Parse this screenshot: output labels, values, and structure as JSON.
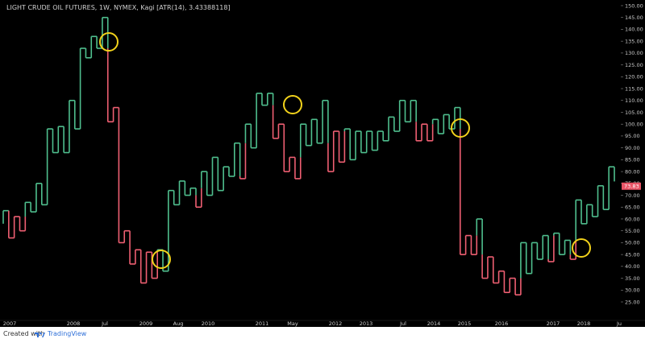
{
  "chart_data": {
    "type": "line",
    "chart_style": "kagi",
    "title": "LIGHT CRUDE OIL FUTURES, 1W, NYMEX, Kagi [ATR(14), 3.43388118]",
    "y_ticks": [
      25,
      30,
      35,
      40,
      45,
      50,
      55,
      60,
      65,
      70,
      75,
      80,
      85,
      90,
      95,
      100,
      105,
      110,
      115,
      120,
      125,
      130,
      135,
      140,
      145,
      150
    ],
    "y_tick_labels": [
      "25.00",
      "30.00",
      "35.00",
      "40.00",
      "45.00",
      "50.00",
      "55.00",
      "60.00",
      "65.00",
      "70.00",
      "75.00",
      "80.00",
      "85.00",
      "90.00",
      "95.00",
      "100.00",
      "105.00",
      "110.00",
      "115.00",
      "120.00",
      "125.00",
      "130.00",
      "135.00",
      "140.00",
      "145.00",
      "150.00"
    ],
    "ylim": [
      25,
      150
    ],
    "x_tick_labels": [
      "2007",
      "2008",
      "Jul",
      "2009",
      "Aug",
      "2010",
      "2011",
      "May",
      "2012",
      "2013",
      "Jul",
      "2014",
      "2015",
      "2016",
      "2017",
      "2018",
      "Ju"
    ],
    "last_price_label": "73.83",
    "up_color": "#4fbf8e",
    "down_color": "#ef5f72",
    "kagi_levels": [
      58,
      63.5,
      52,
      61,
      55,
      67,
      63,
      75,
      66,
      98,
      88,
      99,
      88,
      110,
      98,
      132,
      128,
      137,
      132,
      145,
      101,
      107,
      50,
      55,
      41,
      47,
      33,
      46,
      35,
      47,
      38,
      72,
      66,
      76,
      70,
      73,
      65,
      80,
      70,
      86,
      72,
      82,
      78,
      92,
      77,
      100,
      90,
      113,
      108,
      113,
      94,
      100,
      80,
      86,
      77,
      100,
      91,
      102,
      92,
      110,
      80,
      97,
      84,
      98,
      85,
      97,
      88,
      97,
      89,
      97,
      93,
      103,
      97,
      110,
      101,
      110,
      93,
      100,
      93,
      102,
      96,
      104,
      98,
      107,
      45,
      53,
      45,
      60,
      35,
      44,
      33,
      38,
      29,
      35,
      28,
      50,
      37,
      50,
      43,
      53,
      42,
      54,
      45,
      51,
      43,
      68,
      58,
      66,
      61,
      74,
      64,
      82
    ]
  },
  "circles": [
    {
      "cx": 135,
      "cy": 52
    },
    {
      "cx": 363,
      "cy": 130
    },
    {
      "cx": 200,
      "cy": 322
    },
    {
      "cx": 571,
      "cy": 159
    },
    {
      "cx": 721,
      "cy": 308
    }
  ],
  "footer": {
    "created_with": "Created with",
    "brand": "TradingView"
  }
}
